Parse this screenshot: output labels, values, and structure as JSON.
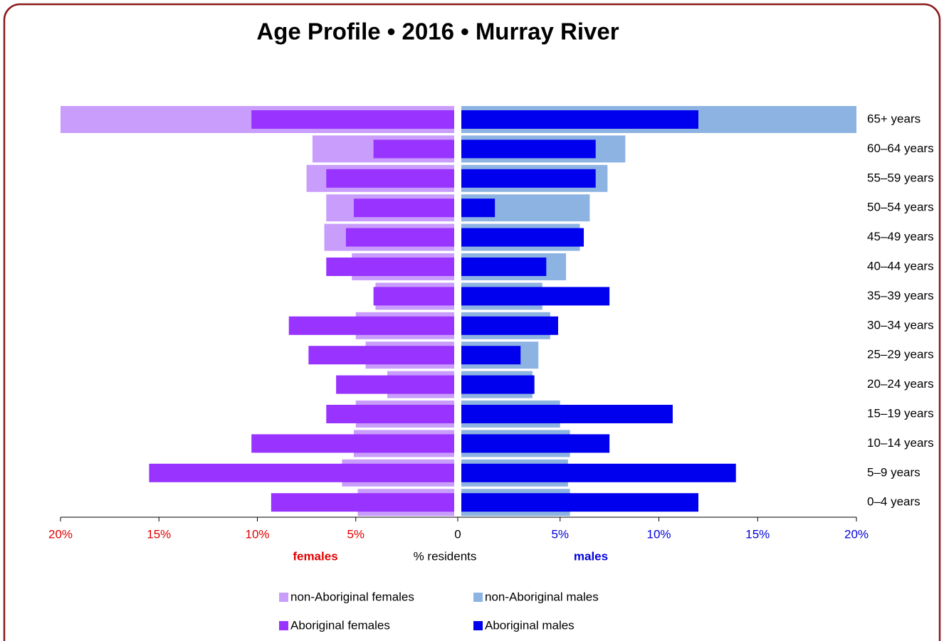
{
  "chart_data": {
    "type": "pyramid",
    "title": "Age Profile  •  2016  •  Murray River",
    "categories": [
      "65+ years",
      "60–64 years",
      "55–59 years",
      "50–54 years",
      "45–49 years",
      "40–44 years",
      "35–39 years",
      "30–34 years",
      "25–29 years",
      "20–24 years",
      "15–19 years",
      "10–14 years",
      "5–9 years",
      "0–4 years"
    ],
    "series": [
      {
        "name": "non-Aboriginal females",
        "color": "#c99dfc",
        "side": "left",
        "style": "wide",
        "values": [
          20,
          7.2,
          7.5,
          6.5,
          6.6,
          5.2,
          4.0,
          5.0,
          4.5,
          3.4,
          5.0,
          5.1,
          5.7,
          4.9
        ]
      },
      {
        "name": "non-Aboriginal males",
        "color": "#8db3e2",
        "side": "right",
        "style": "wide",
        "values": [
          20,
          8.3,
          7.4,
          6.5,
          6.0,
          5.3,
          4.1,
          4.5,
          3.9,
          3.6,
          5.0,
          5.5,
          5.4,
          5.5
        ]
      },
      {
        "name": "Aboriginal females",
        "color": "#9933ff",
        "side": "left",
        "style": "narrow",
        "values": [
          10.3,
          4.1,
          6.5,
          5.1,
          5.5,
          6.5,
          4.1,
          8.4,
          7.4,
          6.0,
          6.5,
          10.3,
          15.5,
          9.3
        ]
      },
      {
        "name": "Aboriginal males",
        "color": "#0000ee",
        "side": "right",
        "style": "narrow",
        "values": [
          12.0,
          6.8,
          6.8,
          1.7,
          6.2,
          4.3,
          7.5,
          4.9,
          3.0,
          3.7,
          10.7,
          7.5,
          13.9,
          12.0
        ]
      }
    ],
    "xlim": [
      0,
      20
    ],
    "zero_tick": 0,
    "female_xticks": [
      {
        "value": 20,
        "label": "20%"
      },
      {
        "value": 15,
        "label": "15%"
      },
      {
        "value": 10,
        "label": "10%"
      },
      {
        "value": 5,
        "label": "5%"
      }
    ],
    "male_xticks": [
      {
        "value": 5,
        "label": "5%"
      },
      {
        "value": 10,
        "label": "10%"
      },
      {
        "value": 15,
        "label": "15%"
      },
      {
        "value": 20,
        "label": "20%"
      }
    ],
    "female_label": "females",
    "male_label": "males",
    "x_label": "% residents",
    "female_color": "#e00000",
    "male_color": "#0000dd"
  }
}
